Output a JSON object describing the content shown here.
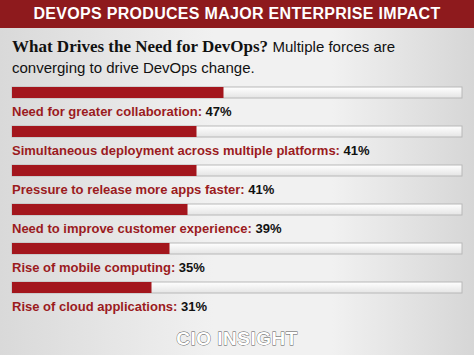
{
  "chart_data": {
    "type": "bar",
    "orientation": "horizontal",
    "title": "What Drives the Need for DevOps?",
    "subtitle": "Multiple forces are converging to drive DevOps change.",
    "annotations": [
      "DEVOPS PRODUCES MAJOR ENTERPRISE IMPACT",
      "CIO INSIGHT"
    ],
    "categories": [
      "Need for greater collaboration:",
      "Simultaneous deployment across multiple platforms:",
      "Pressure to release more apps faster:",
      "Need to improve customer experience:",
      "Rise of mobile computing:",
      "Rise of cloud applications:"
    ],
    "values": [
      47,
      41,
      41,
      39,
      35,
      31
    ],
    "value_labels": [
      "47%",
      "41%",
      "41%",
      "39%",
      "35%",
      "31%"
    ],
    "color": "#a3161d",
    "xlim": [
      0,
      100
    ],
    "data_labels": true,
    "tick_labels": false,
    "grid": false
  }
}
